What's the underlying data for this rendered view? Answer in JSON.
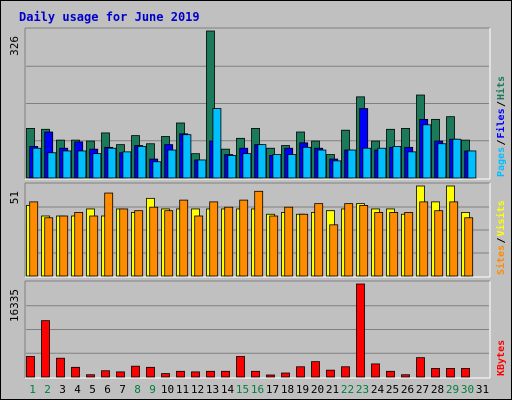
{
  "title": "Daily usage for June 2019",
  "chart_data": {
    "type": "bar",
    "title": "Daily usage for June 2019",
    "categories": [
      "1",
      "2",
      "3",
      "4",
      "5",
      "6",
      "7",
      "8",
      "9",
      "10",
      "11",
      "12",
      "13",
      "14",
      "15",
      "16",
      "17",
      "18",
      "19",
      "20",
      "21",
      "22",
      "23",
      "24",
      "25",
      "26",
      "27",
      "28",
      "29",
      "30",
      "31"
    ],
    "weekend_days": [
      "1",
      "2",
      "8",
      "9",
      "15",
      "16",
      "22",
      "23",
      "29",
      "30"
    ],
    "panels": [
      {
        "id": "hits",
        "axis_max_label": "326",
        "ymax": 326,
        "series": [
          {
            "name": "Hits",
            "color": "#1a7a5a",
            "values": [
              110,
              108,
              84,
              84,
              82,
              100,
              74,
              94,
              76,
              92,
              122,
              54,
              326,
              64,
              88,
              110,
              66,
              72,
              102,
              82,
              52,
              106,
              180,
              82,
              108,
              110,
              184,
              130,
              136,
              84,
              0
            ]
          },
          {
            "name": "Files",
            "color": "#0000ff",
            "values": [
              70,
              102,
              66,
              80,
              64,
              68,
              56,
              72,
              42,
              74,
              98,
              40,
              82,
              52,
              66,
              74,
              50,
              66,
              78,
              66,
              42,
              62,
              154,
              62,
              68,
              68,
              130,
              82,
              86,
              60,
              0
            ]
          },
          {
            "name": "Pages",
            "color": "#00bfff",
            "values": [
              66,
              56,
              60,
              60,
              54,
              66,
              58,
              70,
              36,
              62,
              96,
              40,
              154,
              50,
              54,
              74,
              52,
              52,
              68,
              62,
              38,
              62,
              66,
              66,
              70,
              58,
              118,
              76,
              86,
              60,
              0
            ]
          }
        ],
        "labels": [
          "Pages",
          "Files",
          "Hits"
        ]
      },
      {
        "id": "visits",
        "axis_max_label": "51",
        "ymax": 51,
        "series": [
          {
            "name": "Visits",
            "color": "#ffff00",
            "values": [
              40,
              34,
              34,
              34,
              38,
              34,
              38,
              36,
              44,
              38,
              38,
              38,
              38,
              38,
              38,
              38,
              35,
              36,
              35,
              36,
              37,
              38,
              41,
              38,
              38,
              35,
              51,
              42,
              51,
              36,
              0
            ]
          },
          {
            "name": "Sites",
            "color": "#ff8c00",
            "values": [
              42,
              33,
              34,
              36,
              34,
              47,
              38,
              37,
              39,
              37,
              43,
              34,
              42,
              39,
              43,
              48,
              34,
              39,
              35,
              41,
              29,
              41,
              40,
              36,
              36,
              36,
              42,
              37,
              42,
              33,
              0
            ]
          }
        ],
        "labels": [
          "Sites",
          "Visits"
        ]
      },
      {
        "id": "kbytes",
        "axis_max_label": "16335",
        "ymax": 16335,
        "series": [
          {
            "name": "KBytes",
            "color": "#ff0000",
            "values": [
              3600,
              9900,
              3300,
              1700,
              400,
              1100,
              900,
              1900,
              1700,
              600,
              1000,
              900,
              1000,
              1000,
              3600,
              1000,
              300,
              700,
              1800,
              2700,
              1200,
              1800,
              16335,
              2300,
              1000,
              400,
              3400,
              1500,
              1500,
              1500,
              0
            ]
          }
        ],
        "labels": [
          "KBytes"
        ]
      }
    ]
  }
}
